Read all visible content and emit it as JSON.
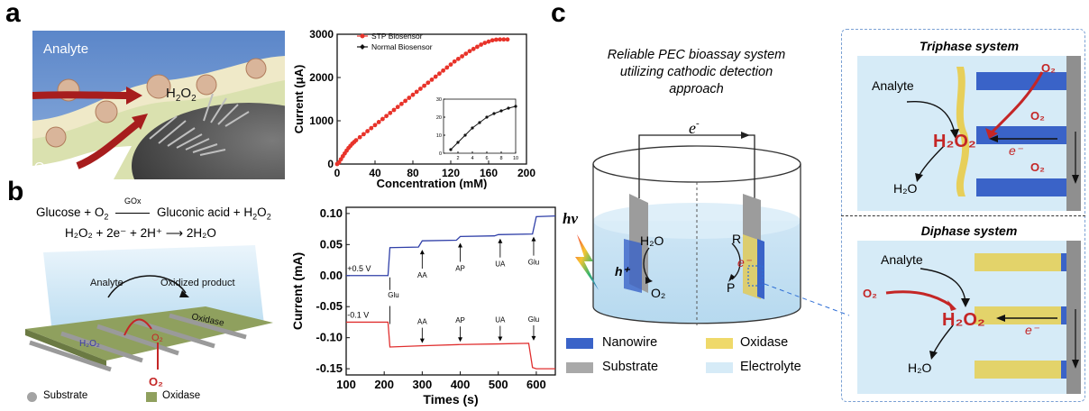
{
  "panels": {
    "a": "a",
    "b": "b",
    "c": "c"
  },
  "panel_a_scheme": {
    "analyte": "Analyte",
    "h2o2": "H",
    "h2o2_sub1": "2",
    "h2o2_o": "O",
    "h2o2_sub2": "2",
    "o2": "O",
    "o2_sub": "2"
  },
  "panel_b_scheme": {
    "eq1_left": "Glucose + O",
    "eq1_sub": "2",
    "eq1_enzyme": "GOx",
    "eq1_right": "Gluconic acid + H",
    "eq1_sub2": "2",
    "eq1_o": "O",
    "eq1_sub3": "2",
    "eq2": "H₂O₂ + 2e⁻ + 2H⁺ ⟶ 2H₂O",
    "analyte": "Analyte",
    "oxidized": "Oxidized product",
    "oxidase": "Oxidase",
    "h2o2": "H₂O₂",
    "o2_a": "O₂",
    "o2_b": "O₂",
    "legend_substrate": "Substrate",
    "legend_oxidase": "Oxidase"
  },
  "panel_c": {
    "title_line1": "Reliable PEC bioassay system",
    "title_line2": "utilizing cathodic detection",
    "title_line3": "approach",
    "electron": "e",
    "hv": "hν",
    "h2o": "H₂O",
    "hplus": "h⁺",
    "o2": "O₂",
    "R": "R",
    "P": "P",
    "e_minus": "e⁻",
    "legend": [
      {
        "label": "Nanowire",
        "color": "#3a63c8"
      },
      {
        "label": "Oxidase",
        "color": "#efd96a"
      },
      {
        "label": "Substrate",
        "color": "#a9a9a9"
      },
      {
        "label": "Electrolyte",
        "color": "#d6ebf7"
      }
    ],
    "triphase": {
      "title": "Triphase system",
      "analyte": "Analyte",
      "o2_1": "O₂",
      "o2_2": "O₂",
      "o2_3": "O₂",
      "h2o2": "H₂O₂",
      "e": "e⁻",
      "h2o": "H₂O"
    },
    "diphase": {
      "title": "Diphase system",
      "analyte": "Analyte",
      "o2": "O₂",
      "h2o2": "H₂O₂",
      "e": "e⁻",
      "h2o": "H₂O"
    }
  },
  "chart_data": [
    {
      "type": "line",
      "xlabel": "Concentration (mM)",
      "ylabel": "Current (μA)",
      "xlim": [
        0,
        200
      ],
      "ylim": [
        0,
        3000
      ],
      "xticks": [
        "0",
        "40",
        "80",
        "120",
        "160",
        "200"
      ],
      "yticks": [
        "0",
        "1000",
        "2000",
        "3000"
      ],
      "legend_position": "top-left",
      "series": [
        {
          "name": "STP Biosensor",
          "color": "#e8332a",
          "x": [
            0,
            2,
            4,
            6,
            8,
            10,
            12,
            14,
            16,
            18,
            20,
            24,
            28,
            32,
            36,
            40,
            44,
            48,
            52,
            56,
            60,
            64,
            68,
            72,
            76,
            80,
            84,
            88,
            92,
            96,
            100,
            104,
            108,
            112,
            116,
            120,
            124,
            128,
            132,
            136,
            140,
            144,
            148,
            152,
            156,
            160,
            164,
            168,
            172,
            176,
            180
          ],
          "y": [
            0,
            40,
            110,
            180,
            245,
            310,
            370,
            420,
            470,
            510,
            550,
            620,
            690,
            760,
            830,
            900,
            970,
            1040,
            1110,
            1180,
            1250,
            1320,
            1390,
            1460,
            1530,
            1600,
            1670,
            1740,
            1810,
            1880,
            1950,
            2020,
            2090,
            2160,
            2230,
            2300,
            2370,
            2430,
            2490,
            2550,
            2610,
            2660,
            2710,
            2760,
            2800,
            2830,
            2860,
            2875,
            2880,
            2880,
            2880
          ]
        },
        {
          "name": "Normal Biosensor",
          "color": "#111111",
          "x": [],
          "y": []
        }
      ],
      "inset": {
        "xlim": [
          0,
          10
        ],
        "ylim": [
          0,
          30
        ],
        "xticks": [
          "2",
          "4",
          "6",
          "8",
          "10"
        ],
        "yticks": [
          "0",
          "10",
          "20",
          "30"
        ],
        "x": [
          1,
          2,
          3,
          4,
          5,
          6,
          7,
          8,
          9,
          10
        ],
        "y": [
          2,
          6,
          10,
          14,
          17,
          20,
          22,
          23.5,
          25,
          26
        ]
      }
    },
    {
      "type": "line",
      "xlabel": "Times (s)",
      "ylabel": "Current (mA)",
      "xlim": [
        100,
        650
      ],
      "ylim": [
        -0.16,
        0.11
      ],
      "xticks": [
        "100",
        "200",
        "300",
        "400",
        "500",
        "600"
      ],
      "yticks": [
        "0.10",
        "0.05",
        "0.00",
        "-0.05",
        "-0.10",
        "-0.15"
      ],
      "series": [
        {
          "name": "+0.5 V",
          "color": "#2f3fa8",
          "x": [
            100,
            210,
            215,
            290,
            300,
            390,
            400,
            490,
            500,
            590,
            600,
            650
          ],
          "y": [
            0.0,
            0.0,
            0.045,
            0.046,
            0.056,
            0.057,
            0.063,
            0.064,
            0.066,
            0.067,
            0.095,
            0.096
          ]
        },
        {
          "name": "-0.1 V",
          "color": "#e02f2f",
          "x": [
            100,
            210,
            215,
            300,
            400,
            500,
            580,
            590,
            600,
            650
          ],
          "y": [
            -0.075,
            -0.075,
            -0.115,
            -0.113,
            -0.111,
            -0.11,
            -0.109,
            -0.148,
            -0.15,
            -0.15
          ]
        }
      ],
      "annotations_top": [
        {
          "label": "AA",
          "x": 300
        },
        {
          "label": "AP",
          "x": 400
        },
        {
          "label": "UA",
          "x": 505
        },
        {
          "label": "Glu",
          "x": 593
        }
      ],
      "annotations_bottom": [
        {
          "label": "AA",
          "x": 300
        },
        {
          "label": "AP",
          "x": 400
        },
        {
          "label": "UA",
          "x": 505
        },
        {
          "label": "Glu",
          "x": 593
        }
      ],
      "annotation_glu_start": "Glu"
    }
  ]
}
